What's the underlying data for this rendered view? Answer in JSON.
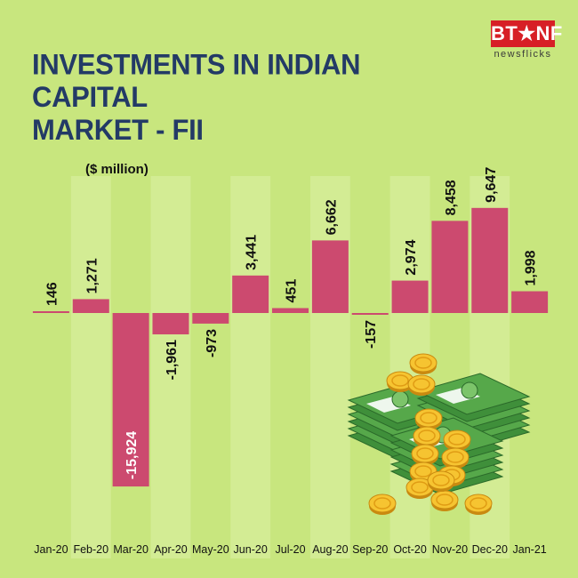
{
  "header": {
    "title_line1": "INVESTMENTS IN INDIAN CAPITAL",
    "title_line2": "MARKET - FII",
    "logo_main": "BT★NF",
    "logo_sub": "newsflicks"
  },
  "colors": {
    "background": "#c8e67e",
    "column_band": "#d3ec94",
    "bar": "#cc4a6f",
    "title": "#233a66",
    "brand_red": "#d71f26"
  },
  "chart_data": {
    "type": "bar",
    "title": "INVESTMENTS IN INDIAN CAPITAL MARKET - FII",
    "unit_label": "($ million)",
    "categories": [
      "Jan-20",
      "Feb-20",
      "Mar-20",
      "Apr-20",
      "May-20",
      "Jun-20",
      "Jul-20",
      "Aug-20",
      "Sep-20",
      "Oct-20",
      "Nov-20",
      "Dec-20",
      "Jan-21"
    ],
    "values": [
      146,
      1271,
      -15924,
      -1961,
      -973,
      3441,
      451,
      6662,
      -157,
      2974,
      8458,
      9647,
      1998
    ],
    "value_labels": [
      "146",
      "1,271",
      "-15,924",
      "-1,961",
      "-973",
      "3,441",
      "451",
      "6,662",
      "-157",
      "2,974",
      "8,458",
      "9,647",
      "1,998"
    ],
    "xlabel": "",
    "ylabel": "",
    "grid": false,
    "legend": "none"
  },
  "decoration": {
    "illustration": "cash-and-coins-icon"
  }
}
